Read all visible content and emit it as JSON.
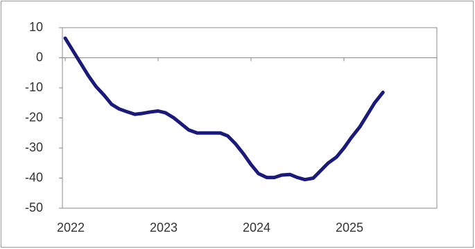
{
  "chart_data": {
    "type": "line",
    "x": [
      2022.0,
      2022.08,
      2022.17,
      2022.25,
      2022.33,
      2022.42,
      2022.5,
      2022.58,
      2022.67,
      2022.75,
      2022.83,
      2022.92,
      2023.0,
      2023.08,
      2023.17,
      2023.25,
      2023.33,
      2023.42,
      2023.5,
      2023.58,
      2023.67,
      2023.75,
      2023.83,
      2023.92,
      2024.0,
      2024.08,
      2024.17,
      2024.25,
      2024.33,
      2024.42,
      2024.5,
      2024.58,
      2024.67,
      2024.75,
      2024.83,
      2024.92,
      2025.0,
      2025.08,
      2025.17,
      2025.25,
      2025.33,
      2025.42
    ],
    "series": [
      {
        "color": "#1a1a7a",
        "values": [
          6.5,
          2.5,
          -2,
          -6,
          -9.5,
          -12.5,
          -15.5,
          -17,
          -18,
          -18.8,
          -18.5,
          -18,
          -17.7,
          -18.3,
          -20,
          -22,
          -24,
          -25,
          -25,
          -25,
          -25,
          -26,
          -28.5,
          -32,
          -35.5,
          -38.5,
          -39.8,
          -39.8,
          -39,
          -38.8,
          -39.8,
          -40.5,
          -40,
          -37.5,
          -35,
          -33,
          -30,
          -26.5,
          -23,
          -19,
          -15,
          -11.5
        ]
      }
    ],
    "xlim": [
      2021.97,
      2026.0
    ],
    "xticks": [
      2022,
      2023,
      2024,
      2025
    ],
    "ylim": [
      -50,
      10
    ],
    "yticks": [
      -50,
      -40,
      -30,
      -20,
      -10,
      0,
      10
    ]
  }
}
